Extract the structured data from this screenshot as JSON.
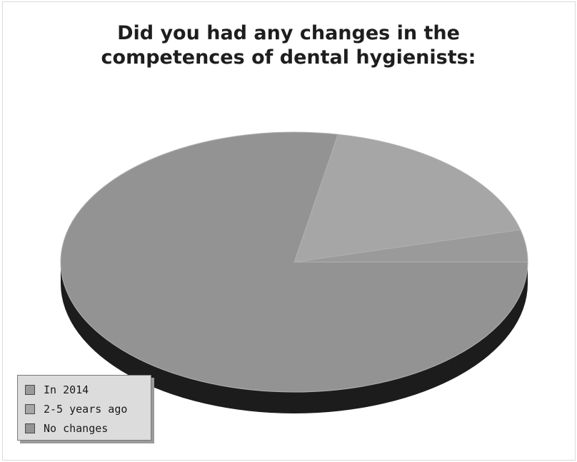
{
  "chart_data": {
    "type": "pie",
    "title_lines": [
      "Did you had any changes in the",
      "competences of dental hygienists:"
    ],
    "slices": [
      {
        "label": "In 2014",
        "value": 4,
        "color": "#9a9a9a"
      },
      {
        "label": "2-5 years ago",
        "value": 18,
        "color": "#a6a6a6"
      },
      {
        "label": "No changes",
        "value": 78,
        "color": "#939393"
      }
    ],
    "legend_position": "bottom-left",
    "style": "3d"
  }
}
